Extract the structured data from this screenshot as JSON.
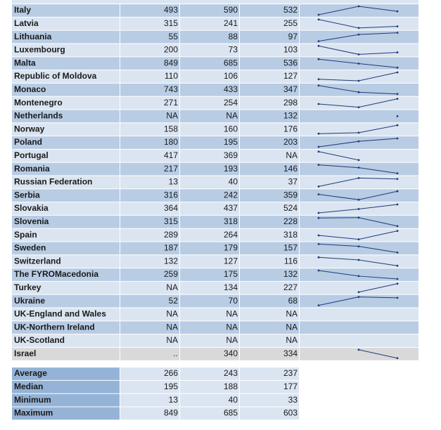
{
  "table": {
    "rows": [
      {
        "name": "Italy",
        "values": [
          493,
          590,
          532
        ]
      },
      {
        "name": "Latvia",
        "values": [
          315,
          241,
          255
        ]
      },
      {
        "name": "Lithuania",
        "values": [
          55,
          88,
          97
        ]
      },
      {
        "name": "Luxembourg",
        "values": [
          200,
          73,
          103
        ]
      },
      {
        "name": "Malta",
        "values": [
          849,
          685,
          536
        ]
      },
      {
        "name": "Republic of Moldova",
        "values": [
          110,
          106,
          127
        ]
      },
      {
        "name": "Monaco",
        "values": [
          743,
          433,
          347
        ]
      },
      {
        "name": "Montenegro",
        "values": [
          271,
          254,
          298
        ]
      },
      {
        "name": "Netherlands",
        "values": [
          "NA",
          "NA",
          132
        ]
      },
      {
        "name": "Norway",
        "values": [
          158,
          160,
          176
        ]
      },
      {
        "name": "Poland",
        "values": [
          180,
          195,
          203
        ]
      },
      {
        "name": "Portugal",
        "values": [
          417,
          369,
          "NA"
        ]
      },
      {
        "name": "Romania",
        "values": [
          217,
          193,
          146
        ]
      },
      {
        "name": "Russian Federation",
        "values": [
          13,
          40,
          37
        ]
      },
      {
        "name": "Serbia",
        "values": [
          316,
          242,
          359
        ]
      },
      {
        "name": "Slovakia",
        "values": [
          364,
          437,
          524
        ]
      },
      {
        "name": "Slovenia",
        "values": [
          315,
          318,
          228
        ]
      },
      {
        "name": "Spain",
        "values": [
          289,
          264,
          318
        ]
      },
      {
        "name": "Sweden",
        "values": [
          187,
          179,
          157
        ]
      },
      {
        "name": "Switzerland",
        "values": [
          132,
          127,
          116
        ]
      },
      {
        "name": "The FYROMacedonia",
        "values": [
          259,
          175,
          132
        ]
      },
      {
        "name": "Turkey",
        "values": [
          "NA",
          134,
          227
        ]
      },
      {
        "name": "Ukraine",
        "values": [
          52,
          70,
          68
        ]
      },
      {
        "name": "UK-England and Wales",
        "values": [
          "NA",
          "NA",
          "NA"
        ]
      },
      {
        "name": "UK-Northern Ireland",
        "values": [
          "NA",
          "NA",
          "NA"
        ]
      },
      {
        "name": "UK-Scotland",
        "values": [
          "NA",
          "NA",
          "NA"
        ]
      },
      {
        "name": "Israel",
        "values": [
          "..",
          340,
          334
        ]
      }
    ]
  },
  "summary": {
    "rows": [
      {
        "name": "Average",
        "values": [
          266,
          243,
          237
        ]
      },
      {
        "name": "Median",
        "values": [
          195,
          188,
          177
        ]
      },
      {
        "name": "Minimum",
        "values": [
          13,
          40,
          33
        ]
      },
      {
        "name": "Maximum",
        "values": [
          849,
          685,
          603
        ]
      }
    ]
  }
}
